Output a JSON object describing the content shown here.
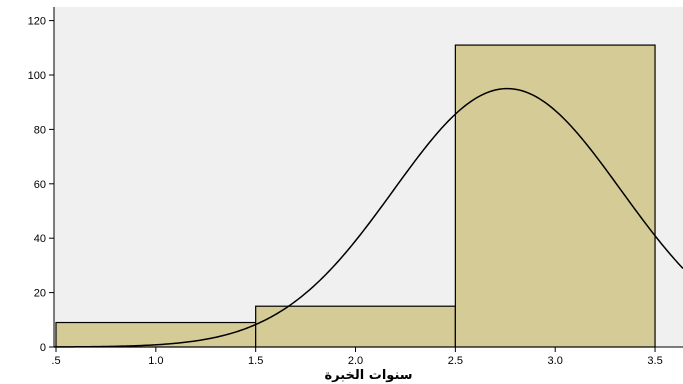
{
  "chart_data": {
    "type": "bar",
    "subtype": "histogram",
    "xlabel": "سنوات الخبرة",
    "ylabel": "",
    "bins": [
      {
        "from": 0.5,
        "to": 1.5,
        "count": 9
      },
      {
        "from": 1.5,
        "to": 2.5,
        "count": 15
      },
      {
        "from": 2.5,
        "to": 3.5,
        "count": 111
      }
    ],
    "normal_curve": {
      "mean": 2.76,
      "sd": 0.57,
      "peak": 95
    },
    "xlim": [
      0.49,
      3.64
    ],
    "ylim": [
      0,
      125
    ],
    "xticks": [
      0.5,
      1.0,
      1.5,
      2.0,
      2.5,
      3.0,
      3.5
    ],
    "xtick_labels": [
      ".5",
      "1.0",
      "1.5",
      "2.0",
      "2.5",
      "3.0",
      "3.5"
    ],
    "yticks": [
      0,
      20,
      40,
      60,
      80,
      100,
      120
    ],
    "ytick_labels": [
      "0",
      "20",
      "40",
      "60",
      "80",
      "100",
      "120"
    ],
    "grid": false,
    "legend": "none",
    "colors": {
      "plot_background": "#f0f0f0",
      "bar_fill": "#d4cb96",
      "bar_stroke": "#000000",
      "curve": "#000000"
    }
  }
}
